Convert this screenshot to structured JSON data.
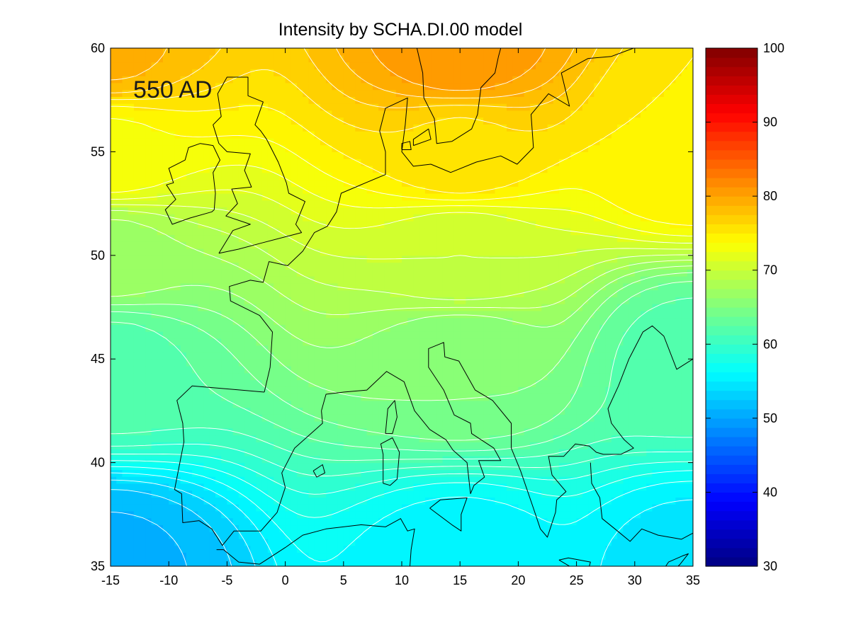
{
  "chart_data": {
    "type": "heatmap",
    "title": "Intensity by SCHA.DI.00 model",
    "annotation": "550 AD",
    "xlabel": "",
    "ylabel": "",
    "xlim": [
      -15,
      35
    ],
    "ylim": [
      35,
      60
    ],
    "x_ticks": [
      -15,
      -10,
      -5,
      0,
      5,
      10,
      15,
      20,
      25,
      30,
      35
    ],
    "y_ticks": [
      35,
      40,
      45,
      50,
      55,
      60
    ],
    "colorbar": {
      "range": [
        30,
        100
      ],
      "ticks": [
        30,
        40,
        50,
        60,
        70,
        80,
        90,
        100
      ],
      "colormap": "jet",
      "levels": 56
    },
    "contour_interval": 1.25,
    "contour_color": "#ffffff",
    "coastline_color": "#000000",
    "intensity_samples": [
      {
        "lon": -15,
        "lat": 35,
        "value": 51.0
      },
      {
        "lon": 15,
        "lat": 35,
        "value": 55.5
      },
      {
        "lon": 35,
        "lat": 35,
        "value": 54.5
      },
      {
        "lon": -15,
        "lat": 45,
        "value": 62.0
      },
      {
        "lon": 15,
        "lat": 45,
        "value": 65.0
      },
      {
        "lon": 35,
        "lat": 45,
        "value": 62.0
      },
      {
        "lon": -15,
        "lat": 50,
        "value": 67.0
      },
      {
        "lon": 15,
        "lat": 50,
        "value": 70.0
      },
      {
        "lon": -15,
        "lat": 55,
        "value": 73.5
      },
      {
        "lon": 15,
        "lat": 55,
        "value": 76.0
      },
      {
        "lon": 35,
        "lat": 55,
        "value": 75.0
      },
      {
        "lon": -15,
        "lat": 60,
        "value": 79.0
      },
      {
        "lon": 15,
        "lat": 60,
        "value": 81.0
      }
    ]
  }
}
